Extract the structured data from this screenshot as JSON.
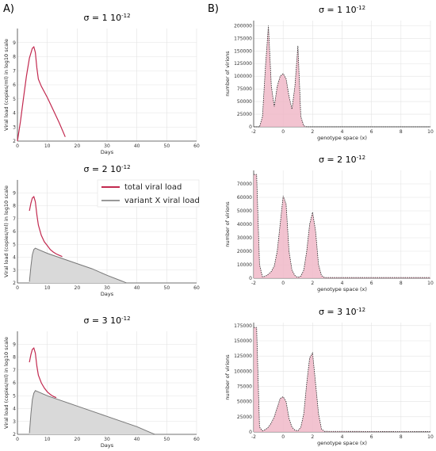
{
  "panel_labels": [
    "A)",
    "B)"
  ],
  "legend": {
    "items": [
      {
        "label": "total viral load",
        "color": "#c2294f"
      },
      {
        "label": "variant X viral load",
        "color": "#999999"
      }
    ]
  },
  "colors": {
    "total": "#c2294f",
    "variant_line": "#777777",
    "variant_fill": "#d9d9d9",
    "hist_fill": "#f0b8c8",
    "hist_line": "#222222",
    "grid": "#e3e3e3"
  },
  "chart_data": [
    {
      "type": "line",
      "panel": "A",
      "row": 0,
      "title": "σ = 1 10",
      "title_exp": "-12",
      "xlabel": "Days",
      "ylabel": "Viral load (copies/ml) in log10 scale",
      "xlim": [
        0,
        60
      ],
      "ylim": [
        2,
        10
      ],
      "xticks": [
        0,
        10,
        20,
        30,
        40,
        50,
        60
      ],
      "yticks": [
        2,
        3,
        4,
        5,
        6,
        7,
        8,
        9
      ],
      "series": [
        {
          "name": "total viral load",
          "x": [
            0,
            1,
            2,
            3,
            4,
            5,
            5.5,
            6,
            6.5,
            7,
            8,
            10,
            12,
            14,
            16
          ],
          "y": [
            2.0,
            3.4,
            5.0,
            6.6,
            7.9,
            8.6,
            8.7,
            8.3,
            7.2,
            6.4,
            5.9,
            5.1,
            4.2,
            3.3,
            2.3
          ]
        }
      ]
    },
    {
      "type": "line",
      "panel": "A",
      "row": 1,
      "title": "σ = 2 10",
      "title_exp": "-12",
      "xlabel": "Days",
      "ylabel": "Viral load (copies/ml) in log10 scale",
      "xlim": [
        0,
        60
      ],
      "ylim": [
        2,
        10
      ],
      "xticks": [
        0,
        10,
        20,
        30,
        40,
        50,
        60
      ],
      "yticks": [
        2,
        3,
        4,
        5,
        6,
        7,
        8,
        9
      ],
      "series": [
        {
          "name": "total viral load",
          "x": [
            4,
            4.5,
            5,
            5.5,
            6,
            6.5,
            7,
            8,
            9,
            10,
            11,
            12,
            13,
            14,
            15
          ],
          "y": [
            7.6,
            8.2,
            8.6,
            8.7,
            8.3,
            7.3,
            6.5,
            5.7,
            5.2,
            4.9,
            4.6,
            4.4,
            4.25,
            4.15,
            4.05
          ]
        },
        {
          "name": "variant X viral load",
          "x": [
            4,
            4.5,
            5,
            5.5,
            6,
            7,
            10,
            15,
            20,
            25,
            30,
            35,
            36.5
          ],
          "y": [
            2.1,
            3.3,
            4.2,
            4.6,
            4.7,
            4.6,
            4.3,
            3.9,
            3.5,
            3.1,
            2.6,
            2.15,
            2.0
          ]
        }
      ]
    },
    {
      "type": "line",
      "panel": "A",
      "row": 2,
      "title": "σ = 3 10",
      "title_exp": "-12",
      "xlabel": "Days",
      "ylabel": "Viral load (copies/ml) in log10 scale",
      "xlim": [
        0,
        60
      ],
      "ylim": [
        2,
        10
      ],
      "xticks": [
        0,
        10,
        20,
        30,
        40,
        50,
        60
      ],
      "yticks": [
        2,
        3,
        4,
        5,
        6,
        7,
        8,
        9
      ],
      "series": [
        {
          "name": "total viral load",
          "x": [
            4,
            4.5,
            5,
            5.5,
            6,
            6.5,
            7,
            8,
            9,
            10,
            11,
            12,
            13
          ],
          "y": [
            7.6,
            8.2,
            8.6,
            8.7,
            8.3,
            7.3,
            6.6,
            6.0,
            5.6,
            5.3,
            5.1,
            4.95,
            4.85
          ]
        },
        {
          "name": "variant X viral load",
          "x": [
            4,
            4.5,
            5,
            5.5,
            6,
            7,
            10,
            15,
            20,
            25,
            30,
            35,
            40,
            45,
            46
          ],
          "y": [
            2.1,
            3.6,
            4.7,
            5.2,
            5.4,
            5.3,
            5.0,
            4.6,
            4.2,
            3.8,
            3.4,
            3.0,
            2.6,
            2.1,
            2.0
          ]
        }
      ]
    },
    {
      "type": "area",
      "panel": "B",
      "row": 0,
      "title": "σ = 1 10",
      "title_exp": "-12",
      "xlabel": "genotype space (x)",
      "ylabel": "number of virions",
      "xlim": [
        -2,
        10
      ],
      "ylim": [
        0,
        210000
      ],
      "xticks": [
        -2,
        0,
        2,
        4,
        6,
        8,
        10
      ],
      "yticks": [
        0,
        25000,
        50000,
        75000,
        100000,
        125000,
        150000,
        175000,
        200000
      ],
      "series": [
        {
          "name": "",
          "x": [
            -2,
            -1.6,
            -1.4,
            -1.2,
            -1.0,
            -0.8,
            -0.6,
            -0.4,
            -0.2,
            0,
            0.2,
            0.4,
            0.6,
            0.8,
            1.0,
            1.2,
            1.4,
            1.6,
            10
          ],
          "y": [
            0,
            0,
            20000,
            120000,
            200000,
            80000,
            40000,
            80000,
            100000,
            105000,
            95000,
            60000,
            35000,
            80000,
            160000,
            20000,
            2000,
            0,
            0
          ]
        }
      ]
    },
    {
      "type": "area",
      "panel": "B",
      "row": 1,
      "title": "σ = 2 10",
      "title_exp": "-12",
      "xlabel": "genotype space (x)",
      "ylabel": "number of virions",
      "xlim": [
        -2,
        10
      ],
      "ylim": [
        0,
        80000
      ],
      "xticks": [
        -2,
        0,
        2,
        4,
        6,
        8,
        10
      ],
      "yticks": [
        0,
        10000,
        20000,
        30000,
        40000,
        50000,
        60000,
        70000
      ],
      "series": [
        {
          "name": "",
          "x": [
            -2,
            -1.8,
            -1.6,
            -1.4,
            -1.2,
            -1.0,
            -0.8,
            -0.6,
            -0.4,
            -0.2,
            0,
            0.2,
            0.4,
            0.6,
            0.8,
            1.0,
            1.2,
            1.4,
            1.6,
            1.8,
            2.0,
            2.2,
            2.4,
            2.6,
            2.8,
            10
          ],
          "y": [
            77000,
            77000,
            10000,
            1000,
            1500,
            3000,
            5000,
            9000,
            20000,
            40000,
            61000,
            55000,
            20000,
            6000,
            2000,
            500,
            1500,
            6000,
            20000,
            40000,
            49000,
            35000,
            10000,
            2000,
            500,
            500
          ]
        }
      ]
    },
    {
      "type": "area",
      "panel": "B",
      "row": 2,
      "title": "σ = 3 10",
      "title_exp": "-12",
      "xlabel": "genotype space (x)",
      "ylabel": "number of virions",
      "xlim": [
        -2,
        10
      ],
      "ylim": [
        0,
        180000
      ],
      "xticks": [
        -2,
        0,
        2,
        4,
        6,
        8,
        10
      ],
      "yticks": [
        0,
        25000,
        50000,
        75000,
        100000,
        125000,
        150000,
        175000
      ],
      "series": [
        {
          "name": "",
          "x": [
            -2,
            -1.8,
            -1.6,
            -1.4,
            -1.2,
            -1.0,
            -0.8,
            -0.6,
            -0.4,
            -0.2,
            0,
            0.2,
            0.4,
            0.6,
            0.8,
            1.0,
            1.2,
            1.4,
            1.6,
            1.8,
            2.0,
            2.2,
            2.4,
            2.6,
            2.8,
            10
          ],
          "y": [
            172000,
            172000,
            8000,
            2000,
            4000,
            8000,
            15000,
            25000,
            40000,
            55000,
            58000,
            50000,
            22000,
            8000,
            3000,
            2000,
            8000,
            30000,
            80000,
            122000,
            130000,
            80000,
            30000,
            5000,
            1000,
            500
          ]
        }
      ]
    }
  ]
}
